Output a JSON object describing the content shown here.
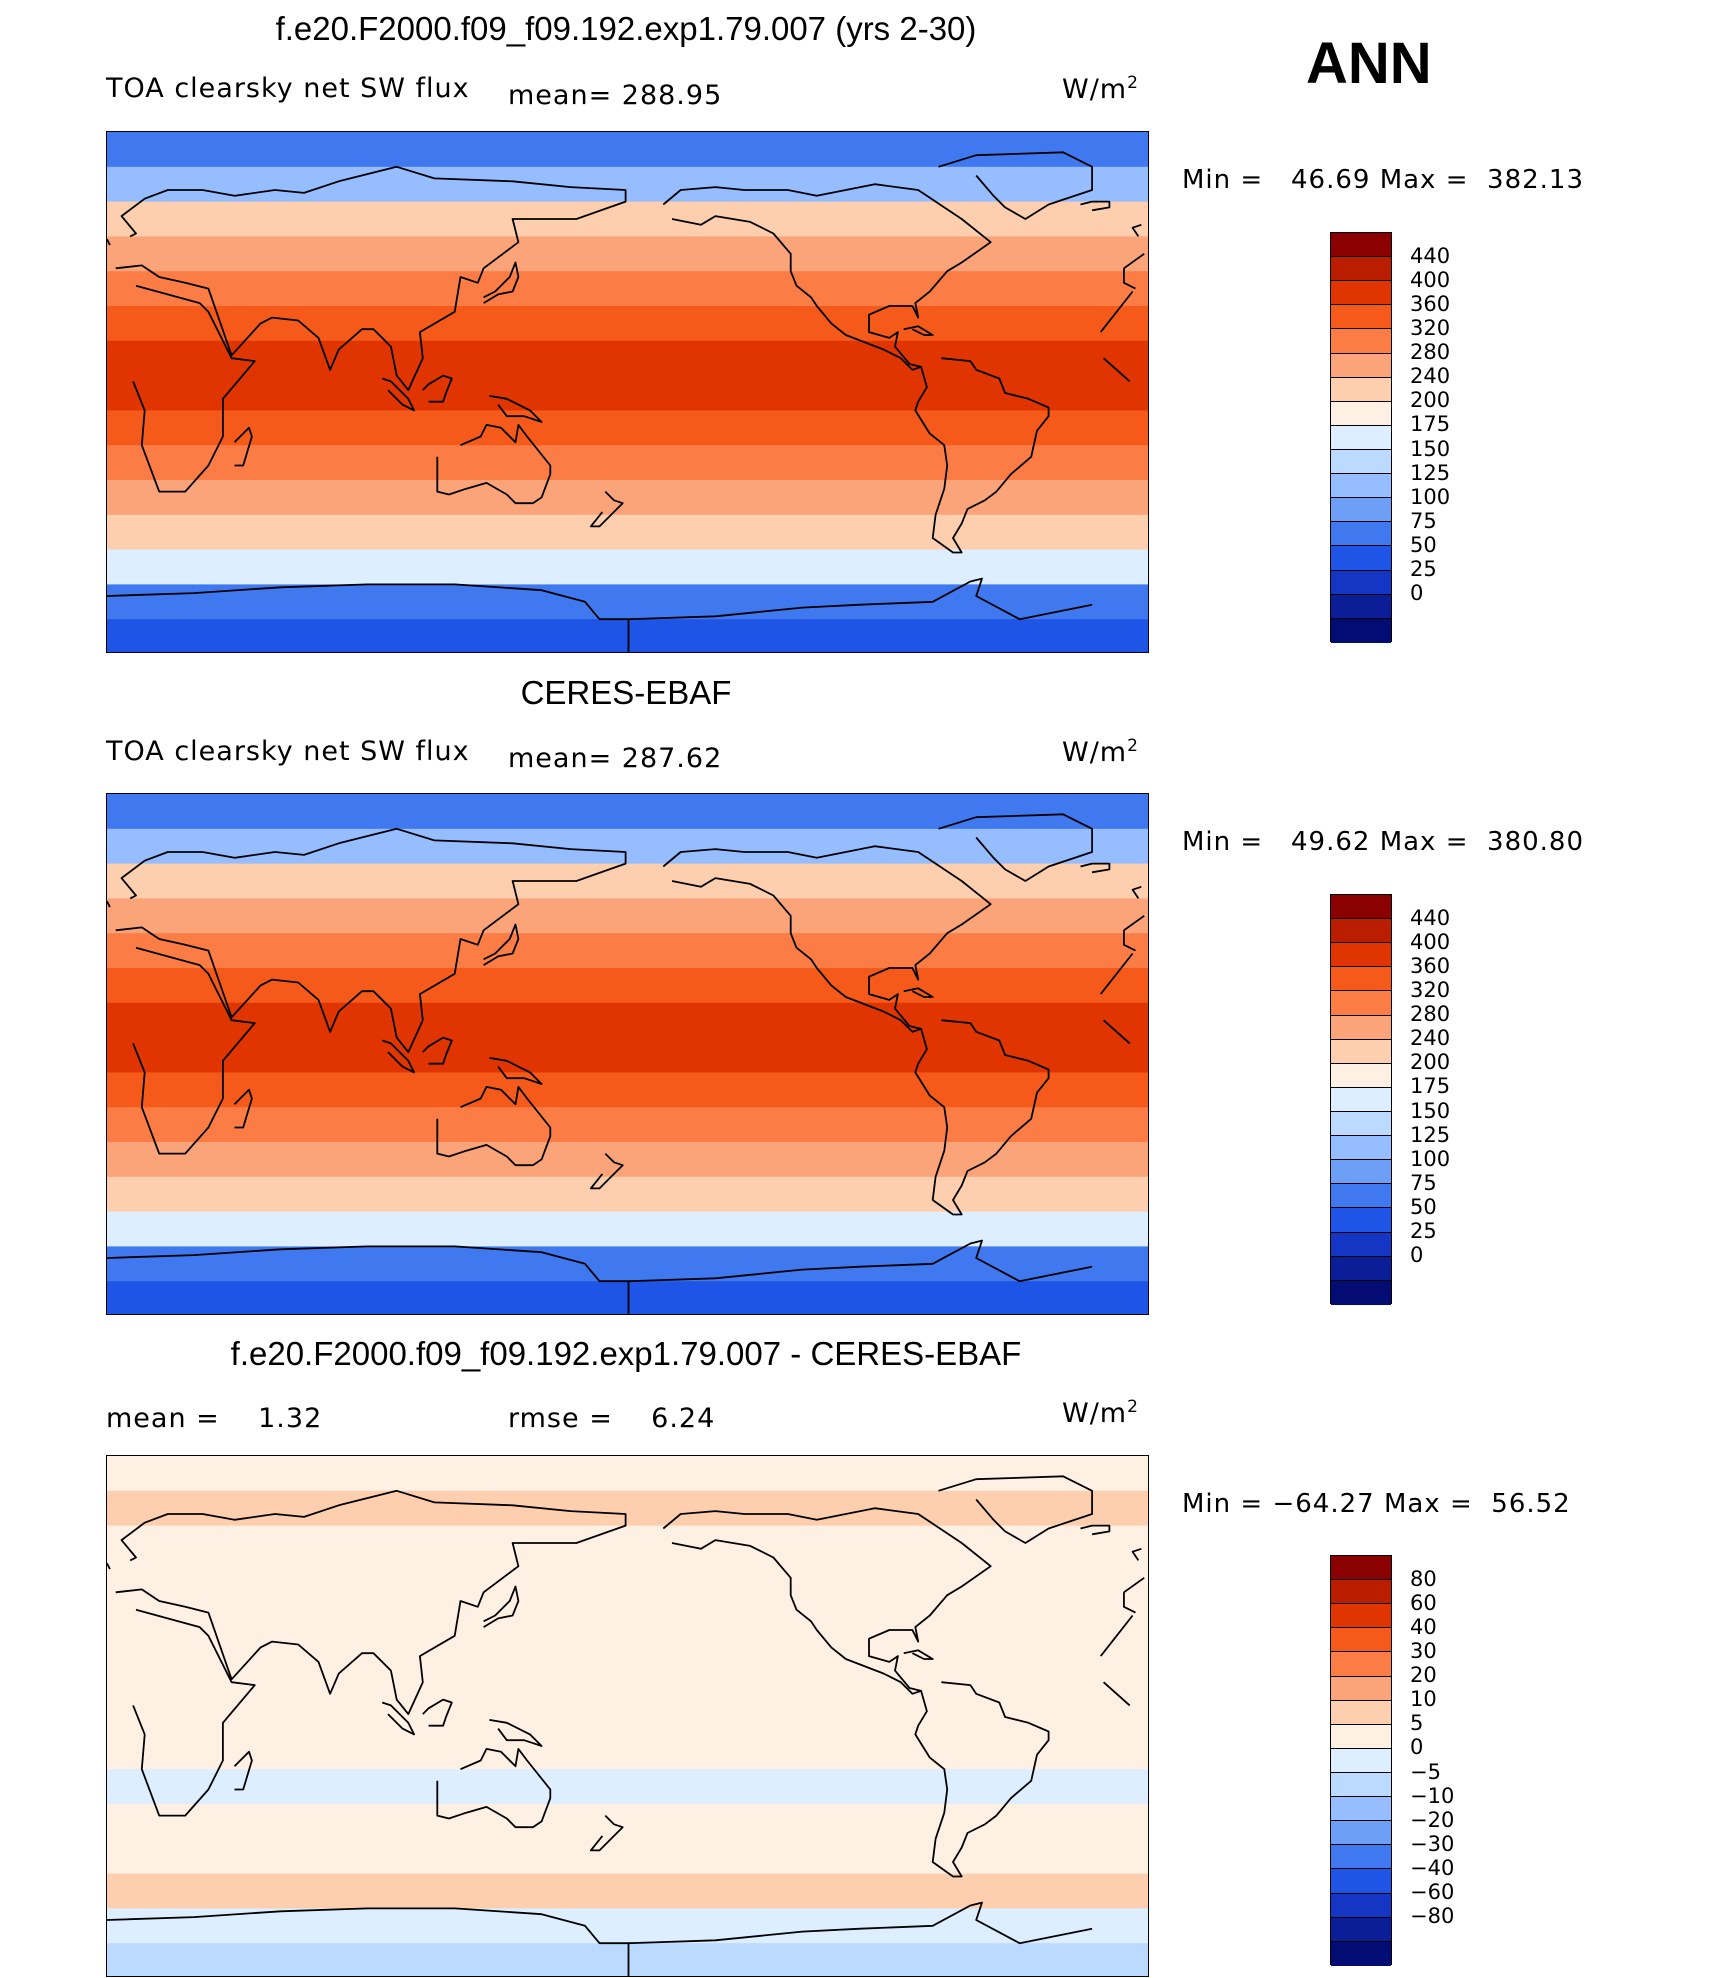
{
  "season": "ANN",
  "panels": [
    {
      "title": "f.e20.F2000.f09_f09.192.exp1.79.007 (yrs 2-30)",
      "variable": "TOA clearsky net SW flux",
      "mean_text": "mean= 288.95",
      "units": "W/m",
      "units_sup": "2",
      "min_label": "Min =",
      "min_value": "46.69",
      "max_label": "Max =",
      "max_value": "382.13",
      "colorbar": {
        "colors": [
          "#8b0000",
          "#bb1d00",
          "#e03500",
          "#f55a1a",
          "#fb7d45",
          "#fca479",
          "#fdcfae",
          "#fff0e4",
          "#dceeff",
          "#bcd9ff",
          "#95bdff",
          "#6d9ff7",
          "#3f78ef",
          "#1f55e6",
          "#1536c4",
          "#0b1e98",
          "#030c73"
        ],
        "labels": [
          "440",
          "400",
          "360",
          "320",
          "280",
          "240",
          "200",
          "175",
          "150",
          "125",
          "100",
          "75",
          "50",
          "25",
          "0"
        ]
      }
    },
    {
      "title": "CERES-EBAF",
      "variable": "TOA clearsky net SW flux",
      "mean_text": "mean= 287.62",
      "units": "W/m",
      "units_sup": "2",
      "min_label": "Min =",
      "min_value": "49.62",
      "max_label": "Max =",
      "max_value": "380.80",
      "colorbar": {
        "colors": [
          "#8b0000",
          "#bb1d00",
          "#e03500",
          "#f55a1a",
          "#fb7d45",
          "#fca479",
          "#fdcfae",
          "#fff0e4",
          "#dceeff",
          "#bcd9ff",
          "#95bdff",
          "#6d9ff7",
          "#3f78ef",
          "#1f55e6",
          "#1536c4",
          "#0b1e98",
          "#030c73"
        ],
        "labels": [
          "440",
          "400",
          "360",
          "320",
          "280",
          "240",
          "200",
          "175",
          "150",
          "125",
          "100",
          "75",
          "50",
          "25",
          "0"
        ]
      }
    },
    {
      "title": "f.e20.F2000.f09_f09.192.exp1.79.007 - CERES-EBAF",
      "mean_label": "mean =",
      "mean_value": "1.32",
      "rmse_label": "rmse =",
      "rmse_value": "6.24",
      "units": "W/m",
      "units_sup": "2",
      "min_label": "Min =",
      "min_value": "−64.27",
      "max_label": "Max =",
      "max_value": "56.52",
      "colorbar": {
        "colors": [
          "#8b0000",
          "#bb1d00",
          "#e03500",
          "#f55a1a",
          "#fb7d45",
          "#fca479",
          "#fdcfae",
          "#fff0e4",
          "#dceeff",
          "#bcd9ff",
          "#95bdff",
          "#6d9ff7",
          "#3f78ef",
          "#1f55e6",
          "#1536c4",
          "#0b1e98",
          "#030c73"
        ],
        "labels": [
          "80",
          "60",
          "40",
          "30",
          "20",
          "10",
          "5",
          "0",
          "−5",
          "−10",
          "−20",
          "−30",
          "−40",
          "−60",
          "−80"
        ]
      }
    }
  ],
  "map_bands": {
    "model": [
      "#3f78ef",
      "#95bdff",
      "#fdcfae",
      "#fca479",
      "#fb7d45",
      "#f55a1a",
      "#e03500",
      "#e03500",
      "#f55a1a",
      "#fb7d45",
      "#fca479",
      "#fdcfae",
      "#dceeff",
      "#3f78ef",
      "#1f55e6"
    ],
    "obs": [
      "#3f78ef",
      "#95bdff",
      "#fdcfae",
      "#fca479",
      "#fb7d45",
      "#f55a1a",
      "#e03500",
      "#e03500",
      "#f55a1a",
      "#fb7d45",
      "#fca479",
      "#fdcfae",
      "#dceeff",
      "#3f78ef",
      "#1f55e6"
    ],
    "diff": [
      "#fff0e4",
      "#fdcfae",
      "#fff0e4",
      "#fff0e4",
      "#fff0e4",
      "#fff0e4",
      "#fff0e4",
      "#fff0e4",
      "#fff0e4",
      "#dceeff",
      "#fff0e4",
      "#fff0e4",
      "#fdcfae",
      "#dceeff",
      "#bcd9ff"
    ]
  }
}
